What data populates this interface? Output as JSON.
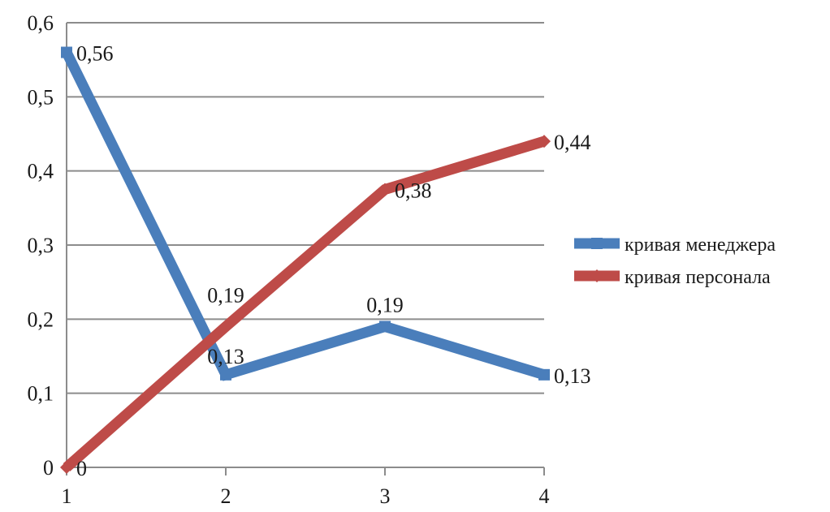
{
  "chart_data": {
    "type": "line",
    "categories": [
      "1",
      "2",
      "3",
      "4"
    ],
    "ylim": [
      0,
      0.6
    ],
    "yticks": [
      0,
      0.1,
      0.2,
      0.3,
      0.4,
      0.5,
      0.6
    ],
    "ytick_labels": [
      "0",
      "0,1",
      "0,2",
      "0,3",
      "0,4",
      "0,5",
      "0,6"
    ],
    "grid": true,
    "legend_position": "right",
    "series": [
      {
        "name": "кривая менеджера",
        "color": "#4a7ebb",
        "marker": "square",
        "values": [
          0.56,
          0.125,
          0.19,
          0.125
        ],
        "labels": [
          "0,56",
          "0,13",
          "0,19",
          "0,13"
        ]
      },
      {
        "name": "кривая персонала",
        "color": "#be4b48",
        "marker": "diamond",
        "values": [
          0,
          0.19,
          0.375,
          0.44
        ],
        "labels": [
          "0",
          "0,19",
          "0,38",
          "0,44"
        ]
      }
    ]
  }
}
